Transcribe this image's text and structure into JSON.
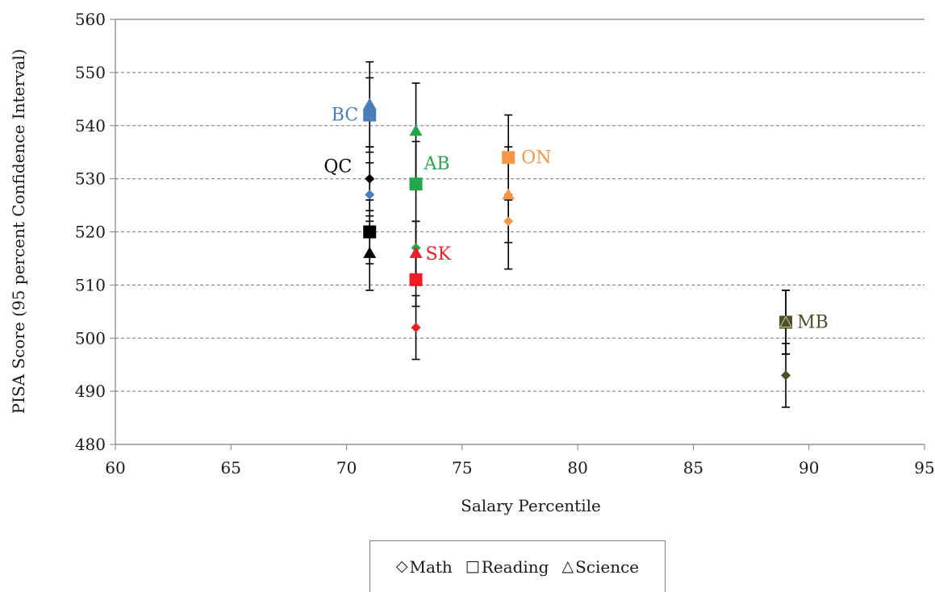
{
  "chart_data": {
    "type": "scatter",
    "xlabel": "Salary Percentile",
    "ylabel": "PISA Score (95 percent Confidence Interval)",
    "xlim": [
      60,
      95
    ],
    "ylim": [
      480,
      560
    ],
    "x_ticks": [
      60,
      65,
      70,
      75,
      80,
      85,
      90,
      95
    ],
    "y_ticks": [
      480,
      490,
      500,
      510,
      520,
      530,
      540,
      550,
      560
    ],
    "grid": "horizontal-dashed",
    "legend_position": "bottom-center",
    "legend": [
      {
        "symbol": "◇",
        "label": "Math"
      },
      {
        "symbol": "□",
        "label": "Reading"
      },
      {
        "symbol": "△",
        "label": "Science"
      }
    ],
    "provinces": [
      {
        "label": "BC",
        "color": "#4a7ebb",
        "x": 71,
        "math": {
          "y": 527,
          "lo": 522,
          "hi": 533
        },
        "reading": {
          "y": 542,
          "lo": 535,
          "hi": 549
        },
        "science": {
          "y": 544,
          "lo": 536,
          "hi": 552
        }
      },
      {
        "label": "QC",
        "color": "#000000",
        "x": 71,
        "math": {
          "y": 530,
          "lo": 524,
          "hi": 536
        },
        "reading": {
          "y": 520,
          "lo": 514,
          "hi": 526
        },
        "science": {
          "y": 516,
          "lo": 509,
          "hi": 523
        }
      },
      {
        "label": "AB",
        "color": "#22a84a",
        "x": 73,
        "math": {
          "y": 517,
          "lo": 511,
          "hi": 522
        },
        "reading": {
          "y": 529,
          "lo": 522,
          "hi": 537
        },
        "science": {
          "y": 539,
          "lo": 530,
          "hi": 548
        }
      },
      {
        "label": "SK",
        "color": "#ee1c24",
        "x": 73,
        "math": {
          "y": 502,
          "lo": 496,
          "hi": 508
        },
        "reading": {
          "y": 511,
          "lo": 506,
          "hi": 517
        },
        "science": {
          "y": 516,
          "lo": 510,
          "hi": 522
        }
      },
      {
        "label": "ON",
        "color": "#f79646",
        "x": 77,
        "math": {
          "y": 522,
          "lo": 518,
          "hi": 526
        },
        "reading": {
          "y": 534,
          "lo": 527,
          "hi": 542
        },
        "science": {
          "y": 527,
          "lo": 513,
          "hi": 536
        }
      },
      {
        "label": "MB",
        "color": "#4f4f28",
        "x": 89,
        "math": {
          "y": 493,
          "lo": 487,
          "hi": 499
        },
        "reading": {
          "y": 503,
          "lo": 497,
          "hi": 509
        },
        "science": {
          "y": 503,
          "lo": 497,
          "hi": 509
        }
      }
    ]
  }
}
